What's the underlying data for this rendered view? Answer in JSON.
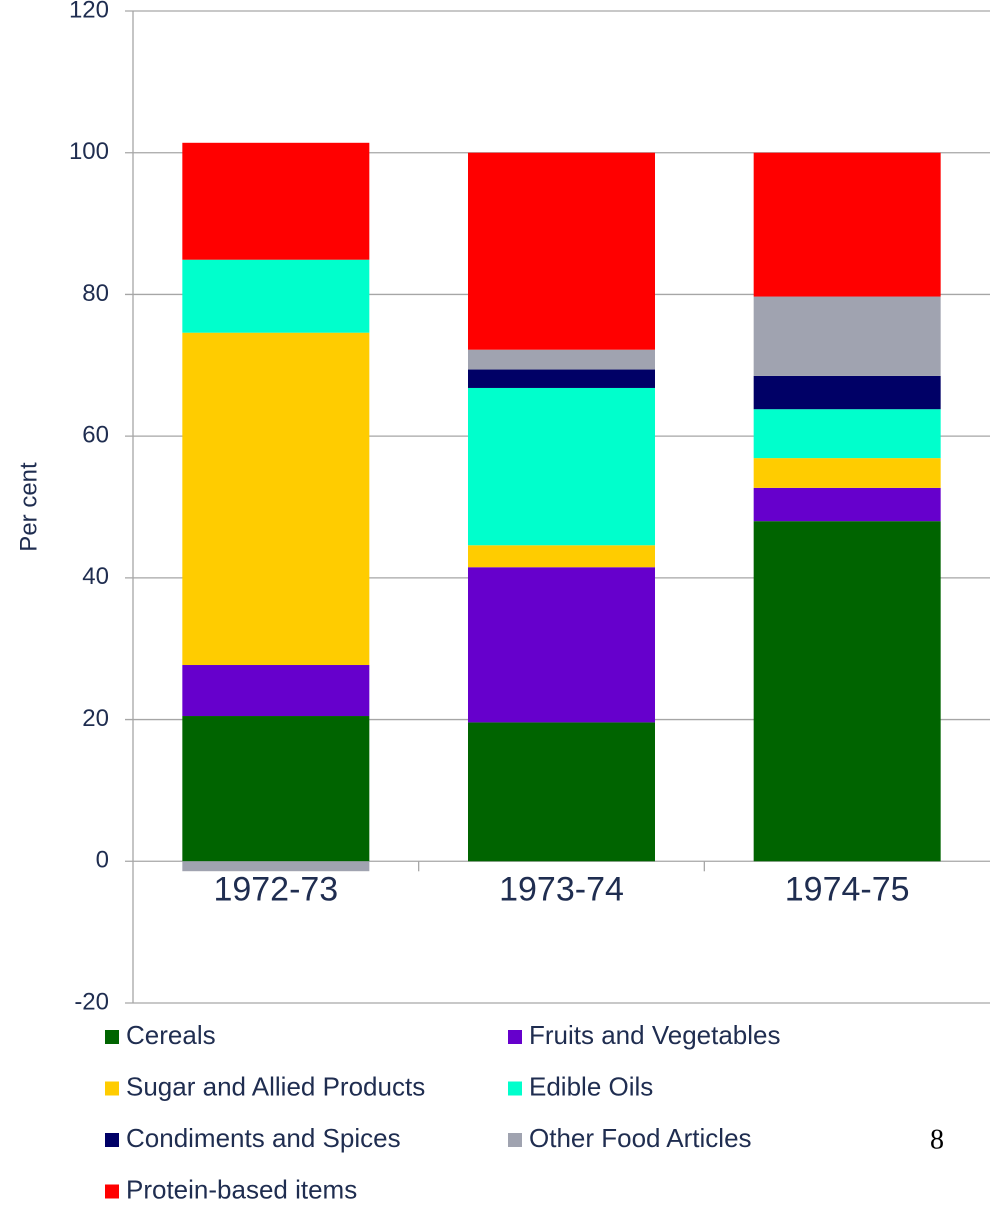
{
  "chart_data": {
    "type": "stacked_bar",
    "y_label": "Per cent",
    "categories": [
      "1972-73",
      "1973-74",
      "1974-75"
    ],
    "series": [
      {
        "name": "Cereals",
        "color": "#006400",
        "values": [
          20.5,
          19.6,
          48.0
        ]
      },
      {
        "name": "Fruits and Vegetables",
        "color": "#6600cc",
        "values": [
          7.2,
          21.9,
          4.7
        ]
      },
      {
        "name": "Sugar and Allied Products",
        "color": "#ffcc00",
        "values": [
          46.9,
          3.1,
          4.2
        ]
      },
      {
        "name": "Edible Oils",
        "color": "#00ffcc",
        "values": [
          10.3,
          22.2,
          6.9
        ]
      },
      {
        "name": "Condiments and Spices",
        "color": "#000066",
        "values": [
          0,
          2.6,
          4.7
        ]
      },
      {
        "name": "Other Food Articles",
        "color": "#a0a3b0",
        "values": [
          -1.4,
          2.8,
          11.2
        ]
      },
      {
        "name": "Protein-based items",
        "color": "#ff0000",
        "values": [
          16.5,
          27.8,
          20.3
        ]
      }
    ],
    "ylim": [
      -20,
      120
    ],
    "yticks": [
      -20,
      0,
      20,
      40,
      60,
      80,
      100,
      120
    ],
    "grid": true
  },
  "page_number": "8"
}
